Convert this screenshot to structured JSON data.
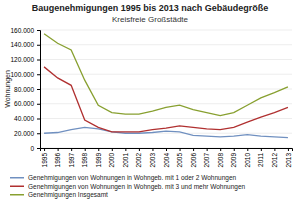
{
  "chart_data": {
    "type": "line",
    "title": "Baugenehmigungen 1995 bis 2013 nach Gebäudegröße",
    "subtitle": "Kreisfreie Großstädte",
    "y_label": "Wohnungen",
    "x": [
      1995,
      1996,
      1997,
      1998,
      1999,
      2000,
      2001,
      2002,
      2003,
      2004,
      2005,
      2006,
      2007,
      2008,
      2009,
      2010,
      2011,
      2012,
      2013
    ],
    "series": [
      {
        "name": "Genehmigungen von Wohnungen in Wohngeb. mit 1 oder 2 Wohnungen",
        "color": "#7090c0",
        "values": [
          20000,
          21000,
          25000,
          28000,
          26000,
          22000,
          20000,
          20000,
          21000,
          23000,
          22000,
          17000,
          16000,
          15000,
          16000,
          18000,
          16000,
          15000,
          14000
        ]
      },
      {
        "name": "Genehmigungen von Wohnungen in Wohngeb. mit 3 und mehr Wohnungen",
        "color": "#b03030",
        "values": [
          110000,
          95000,
          85000,
          38000,
          28000,
          22000,
          22000,
          22000,
          25000,
          27000,
          30000,
          28000,
          26000,
          25000,
          28000,
          35000,
          42000,
          48000,
          55000
        ]
      },
      {
        "name": "Genehmigungen Insgesamt",
        "color": "#88a030",
        "values": [
          155000,
          142000,
          133000,
          92000,
          58000,
          48000,
          46000,
          46000,
          50000,
          55000,
          58000,
          52000,
          48000,
          44000,
          48000,
          58000,
          68000,
          75000,
          83000
        ]
      }
    ],
    "xlim": [
      1994.7,
      2013.3
    ],
    "xticks": [
      1995,
      1996,
      1997,
      1998,
      1999,
      2000,
      2001,
      2002,
      2003,
      2004,
      2005,
      2006,
      2007,
      2008,
      2009,
      2010,
      2011,
      2012,
      2013
    ],
    "ylim": [
      0,
      160000
    ],
    "yticks": [
      0,
      {
        "value": 20000,
        "label": "20.000"
      },
      {
        "value": 40000,
        "label": "40.000"
      },
      {
        "value": 60000,
        "label": "60.000"
      },
      {
        "value": 80000,
        "label": "80.000"
      },
      {
        "value": 100000,
        "label": "100.000"
      },
      {
        "value": 120000,
        "label": "120.000"
      },
      {
        "value": 140000,
        "label": "140.000"
      },
      {
        "value": 160000,
        "label": "160.000"
      }
    ],
    "grid": true,
    "legend": "bottom"
  }
}
